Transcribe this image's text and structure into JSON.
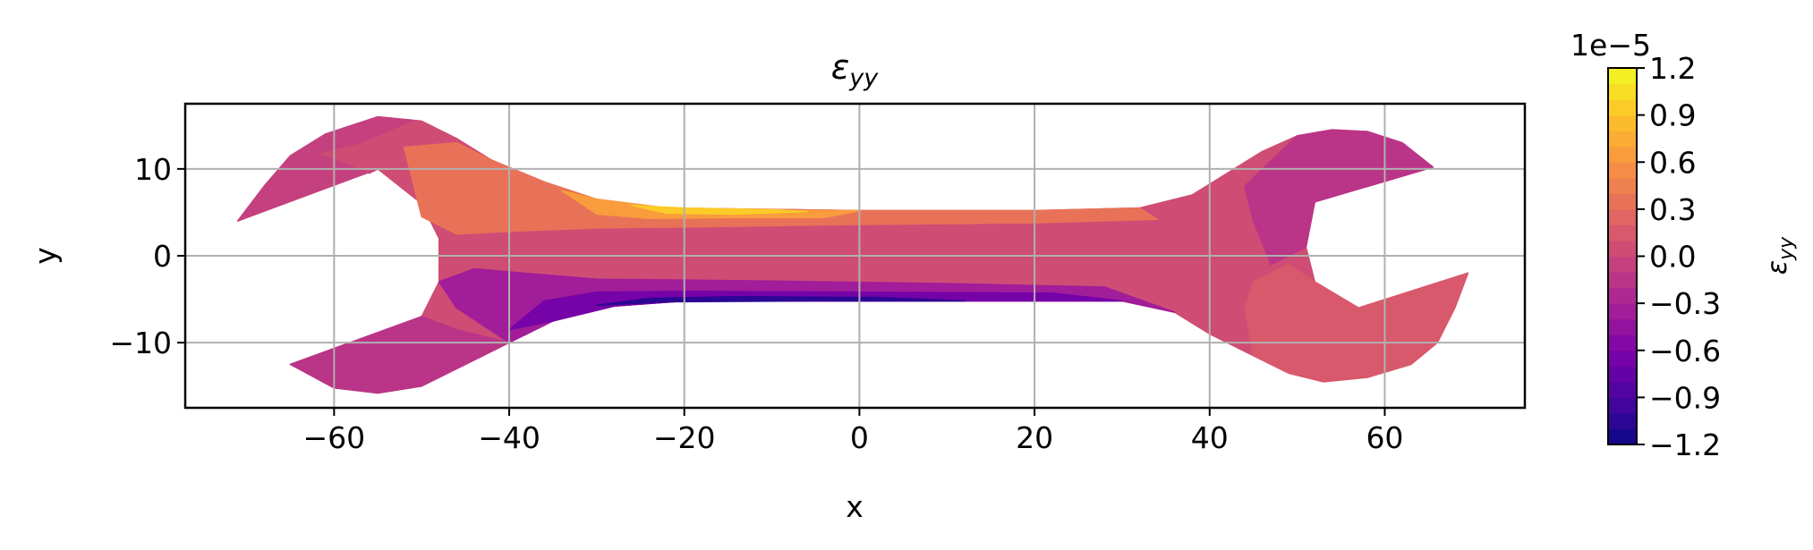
{
  "chart_data": {
    "type": "contour",
    "title": "ε_yy",
    "title_main": "ε",
    "title_sub": "yy",
    "xlabel": "x",
    "ylabel": "y",
    "xlim": [
      -77,
      76
    ],
    "ylim": [
      -17.5,
      17.5
    ],
    "xticks": [
      -60,
      -40,
      -20,
      0,
      20,
      40,
      60
    ],
    "xtick_labels": [
      "−60",
      "−40",
      "−20",
      "0",
      "20",
      "40",
      "60"
    ],
    "yticks": [
      -10,
      0,
      10
    ],
    "ytick_labels": [
      "−10",
      "0",
      "10"
    ],
    "grid": true,
    "colormap": "plasma",
    "colorbar": {
      "label_main": "ε",
      "label_sub": "yy",
      "multiplier": "1e−5",
      "range": [
        -1.2,
        1.2
      ],
      "ticks": [
        1.2,
        0.9,
        0.6,
        0.3,
        0.0,
        -0.3,
        -0.6,
        -0.9,
        -1.2
      ],
      "tick_labels": [
        "1.2",
        "0.9",
        "0.6",
        "0.3",
        "0.0",
        "−0.3",
        "−0.6",
        "−0.9",
        "−1.2"
      ],
      "levels": 24
    },
    "regions": [
      {
        "name": "body",
        "value": 0.05,
        "polygon": [
          [
            -71,
            4
          ],
          [
            -68,
            8
          ],
          [
            -65,
            11.5
          ],
          [
            -61,
            14
          ],
          [
            -55,
            16
          ],
          [
            -50,
            15.5
          ],
          [
            -46,
            13.5
          ],
          [
            -42,
            11
          ],
          [
            -36,
            8.5
          ],
          [
            -30,
            6.5
          ],
          [
            -22,
            5.5
          ],
          [
            0,
            5.2
          ],
          [
            20,
            5.2
          ],
          [
            32,
            5.5
          ],
          [
            38,
            7
          ],
          [
            42,
            9.5
          ],
          [
            46,
            12
          ],
          [
            50,
            13.8
          ],
          [
            54,
            14.5
          ],
          [
            58,
            14.3
          ],
          [
            62,
            13
          ],
          [
            65.5,
            10.2
          ],
          [
            52,
            6.2
          ],
          [
            51,
            1
          ],
          [
            52,
            -3
          ],
          [
            57,
            -6
          ],
          [
            69.5,
            -2
          ],
          [
            68,
            -6
          ],
          [
            66,
            -10
          ],
          [
            63,
            -12.5
          ],
          [
            58,
            -14
          ],
          [
            53,
            -14.5
          ],
          [
            49,
            -13.5
          ],
          [
            45,
            -11.5
          ],
          [
            40,
            -9
          ],
          [
            36,
            -6.5
          ],
          [
            30,
            -5.2
          ],
          [
            20,
            -5.2
          ],
          [
            0,
            -5.2
          ],
          [
            -20,
            -5.2
          ],
          [
            -28,
            -5.8
          ],
          [
            -35,
            -7.5
          ],
          [
            -40,
            -10
          ],
          [
            -45,
            -12.5
          ],
          [
            -50,
            -15
          ],
          [
            -55,
            -15.8
          ],
          [
            -60,
            -15.2
          ],
          [
            -65,
            -12.5
          ],
          [
            -50,
            -7
          ],
          [
            -48,
            -3
          ],
          [
            -48,
            2
          ],
          [
            -50,
            6
          ],
          [
            -55,
            10
          ]
        ]
      },
      {
        "name": "left-jaw-top",
        "value": -0.1,
        "polygon": [
          [
            -71,
            4
          ],
          [
            -68,
            8
          ],
          [
            -65,
            11.5
          ],
          [
            -61,
            14
          ],
          [
            -55,
            16
          ],
          [
            -51,
            15.6
          ],
          [
            -57,
            13
          ],
          [
            -62,
            11.8
          ],
          [
            -56,
            9.5
          ],
          [
            -55,
            10
          ]
        ]
      },
      {
        "name": "left-jaw-bottom",
        "value": -0.15,
        "polygon": [
          [
            -65,
            -12.5
          ],
          [
            -60,
            -15.2
          ],
          [
            -55,
            -15.8
          ],
          [
            -50,
            -15
          ],
          [
            -45,
            -12.5
          ],
          [
            -40,
            -10
          ],
          [
            -46,
            -8.5
          ],
          [
            -50,
            -7
          ]
        ]
      },
      {
        "name": "upper-band",
        "value": 0.3,
        "polygon": [
          [
            -52,
            12.5
          ],
          [
            -46,
            13
          ],
          [
            -42,
            11
          ],
          [
            -36,
            8.5
          ],
          [
            -30,
            6.5
          ],
          [
            -22,
            5.5
          ],
          [
            0,
            5.2
          ],
          [
            20,
            5.2
          ],
          [
            32,
            5.5
          ],
          [
            34,
            4.2
          ],
          [
            20,
            3.8
          ],
          [
            0,
            3.6
          ],
          [
            -20,
            3.3
          ],
          [
            -30,
            3.2
          ],
          [
            -40,
            2.8
          ],
          [
            -46,
            2.5
          ],
          [
            -50,
            4.5
          ]
        ]
      },
      {
        "name": "upper-peak",
        "value": 0.6,
        "polygon": [
          [
            -34,
            7.5
          ],
          [
            -30,
            6.5
          ],
          [
            -22,
            5.5
          ],
          [
            -10,
            5.2
          ],
          [
            0,
            5.2
          ],
          [
            -4,
            4.4
          ],
          [
            -14,
            4.4
          ],
          [
            -24,
            4.3
          ],
          [
            -30,
            4.8
          ]
        ]
      },
      {
        "name": "upper-max",
        "value": 0.9,
        "polygon": [
          [
            -26,
            5.8
          ],
          [
            -20,
            5.5
          ],
          [
            -10,
            5.3
          ],
          [
            -6,
            5.1
          ],
          [
            -14,
            4.8
          ],
          [
            -22,
            4.9
          ]
        ]
      },
      {
        "name": "lower-band",
        "value": -0.35,
        "polygon": [
          [
            -48,
            -3
          ],
          [
            -46,
            -6
          ],
          [
            -40,
            -10
          ],
          [
            -35,
            -7.5
          ],
          [
            -28,
            -5.8
          ],
          [
            -20,
            -5.2
          ],
          [
            0,
            -5.2
          ],
          [
            20,
            -5.2
          ],
          [
            30,
            -5.2
          ],
          [
            36,
            -6.5
          ],
          [
            28,
            -3.6
          ],
          [
            10,
            -3.2
          ],
          [
            -10,
            -2.9
          ],
          [
            -30,
            -2.7
          ],
          [
            -44,
            -1.5
          ]
        ]
      },
      {
        "name": "lower-deep",
        "value": -0.7,
        "polygon": [
          [
            -40,
            -8.5
          ],
          [
            -35,
            -7.5
          ],
          [
            -28,
            -5.8
          ],
          [
            -20,
            -5.2
          ],
          [
            0,
            -5.2
          ],
          [
            20,
            -5.2
          ],
          [
            30,
            -5.2
          ],
          [
            22,
            -4.3
          ],
          [
            0,
            -4.2
          ],
          [
            -20,
            -4.1
          ],
          [
            -30,
            -4.2
          ],
          [
            -36,
            -5.2
          ]
        ]
      },
      {
        "name": "lower-min",
        "value": -1.0,
        "polygon": [
          [
            -30,
            -5.7
          ],
          [
            -22,
            -5.3
          ],
          [
            -5,
            -5.2
          ],
          [
            12,
            -5.2
          ],
          [
            2,
            -4.8
          ],
          [
            -14,
            -4.7
          ],
          [
            -24,
            -4.9
          ]
        ]
      },
      {
        "name": "right-jaw",
        "value": -0.12,
        "polygon": [
          [
            44,
            8
          ],
          [
            50,
            13.8
          ],
          [
            54,
            14.5
          ],
          [
            58,
            14.3
          ],
          [
            62,
            13
          ],
          [
            65.5,
            10.2
          ],
          [
            52,
            6.2
          ],
          [
            51,
            1
          ],
          [
            47,
            -1
          ],
          [
            45,
            4
          ]
        ]
      },
      {
        "name": "right-head-lower",
        "value": 0.15,
        "polygon": [
          [
            45,
            -3
          ],
          [
            49,
            -1
          ],
          [
            52,
            -3
          ],
          [
            57,
            -6
          ],
          [
            69.5,
            -2
          ],
          [
            68,
            -6
          ],
          [
            66,
            -10
          ],
          [
            63,
            -12.5
          ],
          [
            58,
            -14
          ],
          [
            53,
            -14.5
          ],
          [
            49,
            -13.5
          ],
          [
            45,
            -11.5
          ],
          [
            44,
            -6
          ]
        ]
      }
    ]
  }
}
